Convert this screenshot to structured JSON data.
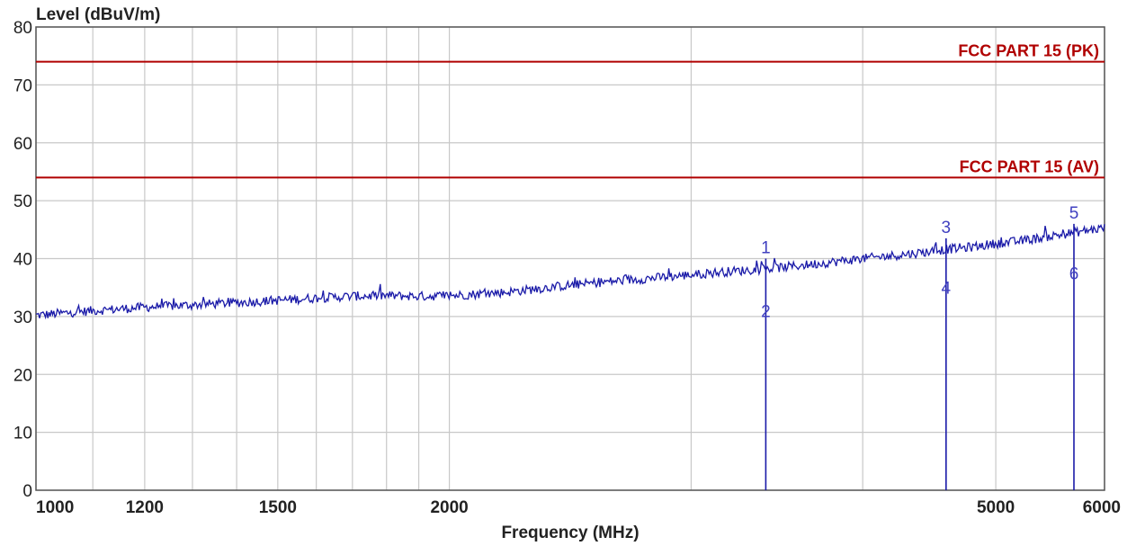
{
  "chart_data": {
    "type": "line",
    "ylabel": "Level (dBuV/m)",
    "xlabel": "Frequency (MHz)",
    "x_scale": "log",
    "xlim": [
      1000,
      6000
    ],
    "ylim": [
      0,
      80
    ],
    "grid": true,
    "y_ticks": [
      0,
      10,
      20,
      30,
      40,
      50,
      60,
      70,
      80
    ],
    "x_tick_labels": [
      {
        "value": 1000,
        "label": "1000"
      },
      {
        "value": 1200,
        "label": "1200"
      },
      {
        "value": 1500,
        "label": "1500"
      },
      {
        "value": 2000,
        "label": "2000"
      },
      {
        "value": 5000,
        "label": "5000"
      },
      {
        "value": 6000,
        "label": "6000"
      }
    ],
    "x_gridlines": [
      1000,
      1100,
      1200,
      1300,
      1400,
      1500,
      1600,
      1700,
      1800,
      1900,
      2000,
      3000,
      4000,
      5000,
      6000
    ],
    "limits": [
      {
        "name": "FCC PART 15 (PK)",
        "value": 74,
        "color": "#b00000"
      },
      {
        "name": "FCC PART 15 (AV)",
        "value": 54,
        "color": "#b00000"
      }
    ],
    "series": [
      {
        "color": "#1a1aa8",
        "x": [
          1000,
          1050,
          1100,
          1150,
          1200,
          1250,
          1300,
          1400,
          1500,
          1600,
          1700,
          1800,
          1900,
          2000,
          2200,
          2400,
          2600,
          2800,
          3000,
          3200,
          3400,
          3600,
          3800,
          4000,
          4200,
          4400,
          4600,
          4800,
          5000,
          5200,
          5400,
          5600,
          5800,
          6000
        ],
        "y": [
          30.2,
          30.6,
          31.0,
          31.3,
          31.6,
          31.8,
          32.0,
          32.4,
          32.8,
          33.2,
          33.5,
          33.6,
          33.5,
          33.6,
          34.2,
          35.2,
          36.0,
          36.6,
          37.2,
          37.8,
          38.2,
          38.8,
          39.4,
          40.0,
          40.5,
          41.0,
          41.6,
          42.0,
          42.6,
          43.0,
          43.6,
          44.2,
          44.8,
          45.3
        ]
      }
    ],
    "markers": [
      {
        "label_top": "1",
        "label_bottom": "2",
        "x": 3400,
        "top": 40,
        "bottom": 31
      },
      {
        "label_top": "3",
        "label_bottom": "4",
        "x": 4600,
        "top": 43.5,
        "bottom": 35
      },
      {
        "label_top": "5",
        "label_bottom": "6",
        "x": 5700,
        "top": 46,
        "bottom": 37.5
      }
    ]
  }
}
